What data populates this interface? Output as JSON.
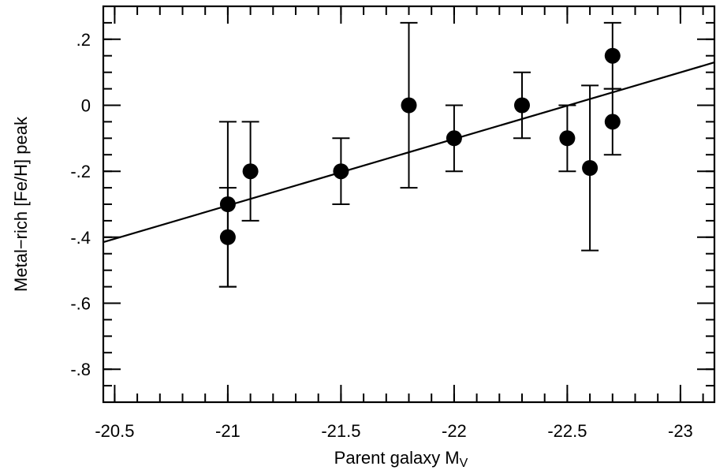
{
  "chart_data": {
    "type": "scatter",
    "xlabel": "Parent galaxy M",
    "xlabel_subscript": "V",
    "ylabel": "Metal−rich [Fe/H] peak",
    "xlim": [
      -20.45,
      -23.15
    ],
    "ylim": [
      -0.9,
      0.3
    ],
    "x_reversed": true,
    "x_ticks": [
      -20.5,
      -21,
      -21.5,
      -22,
      -22.5,
      -23
    ],
    "x_tick_labels": [
      "-20.5",
      "-21",
      "-21.5",
      "-22",
      "-22.5",
      "-23"
    ],
    "y_ticks": [
      0.2,
      0,
      -0.2,
      -0.4,
      -0.6,
      -0.8
    ],
    "y_tick_labels": [
      ".2",
      "0",
      "-.2",
      "-.4",
      "-.6",
      "-.8"
    ],
    "x_minor_step": 0.1,
    "y_minor_step": 0.05,
    "grid": false,
    "legend": "none",
    "points": [
      {
        "x": -21.0,
        "y": -0.3,
        "ylow": -0.55,
        "yhigh": -0.05
      },
      {
        "x": -21.0,
        "y": -0.4,
        "ylow": -0.55,
        "yhigh": -0.25
      },
      {
        "x": -21.1,
        "y": -0.2,
        "ylow": -0.35,
        "yhigh": -0.05
      },
      {
        "x": -21.5,
        "y": -0.2,
        "ylow": -0.3,
        "yhigh": -0.1
      },
      {
        "x": -21.8,
        "y": 0.0,
        "ylow": -0.25,
        "yhigh": 0.25
      },
      {
        "x": -22.0,
        "y": -0.1,
        "ylow": -0.2,
        "yhigh": 0.0
      },
      {
        "x": -22.3,
        "y": 0.0,
        "ylow": -0.1,
        "yhigh": 0.1
      },
      {
        "x": -22.5,
        "y": -0.1,
        "ylow": -0.2,
        "yhigh": 0.0
      },
      {
        "x": -22.6,
        "y": -0.19,
        "ylow": -0.44,
        "yhigh": 0.06
      },
      {
        "x": -22.7,
        "y": 0.15,
        "ylow": 0.05,
        "yhigh": 0.25
      },
      {
        "x": -22.7,
        "y": -0.05,
        "ylow": -0.15,
        "yhigh": 0.05
      }
    ],
    "fit_line": {
      "x": [
        -20.45,
        -23.15
      ],
      "y": [
        -0.415,
        0.13
      ]
    }
  }
}
